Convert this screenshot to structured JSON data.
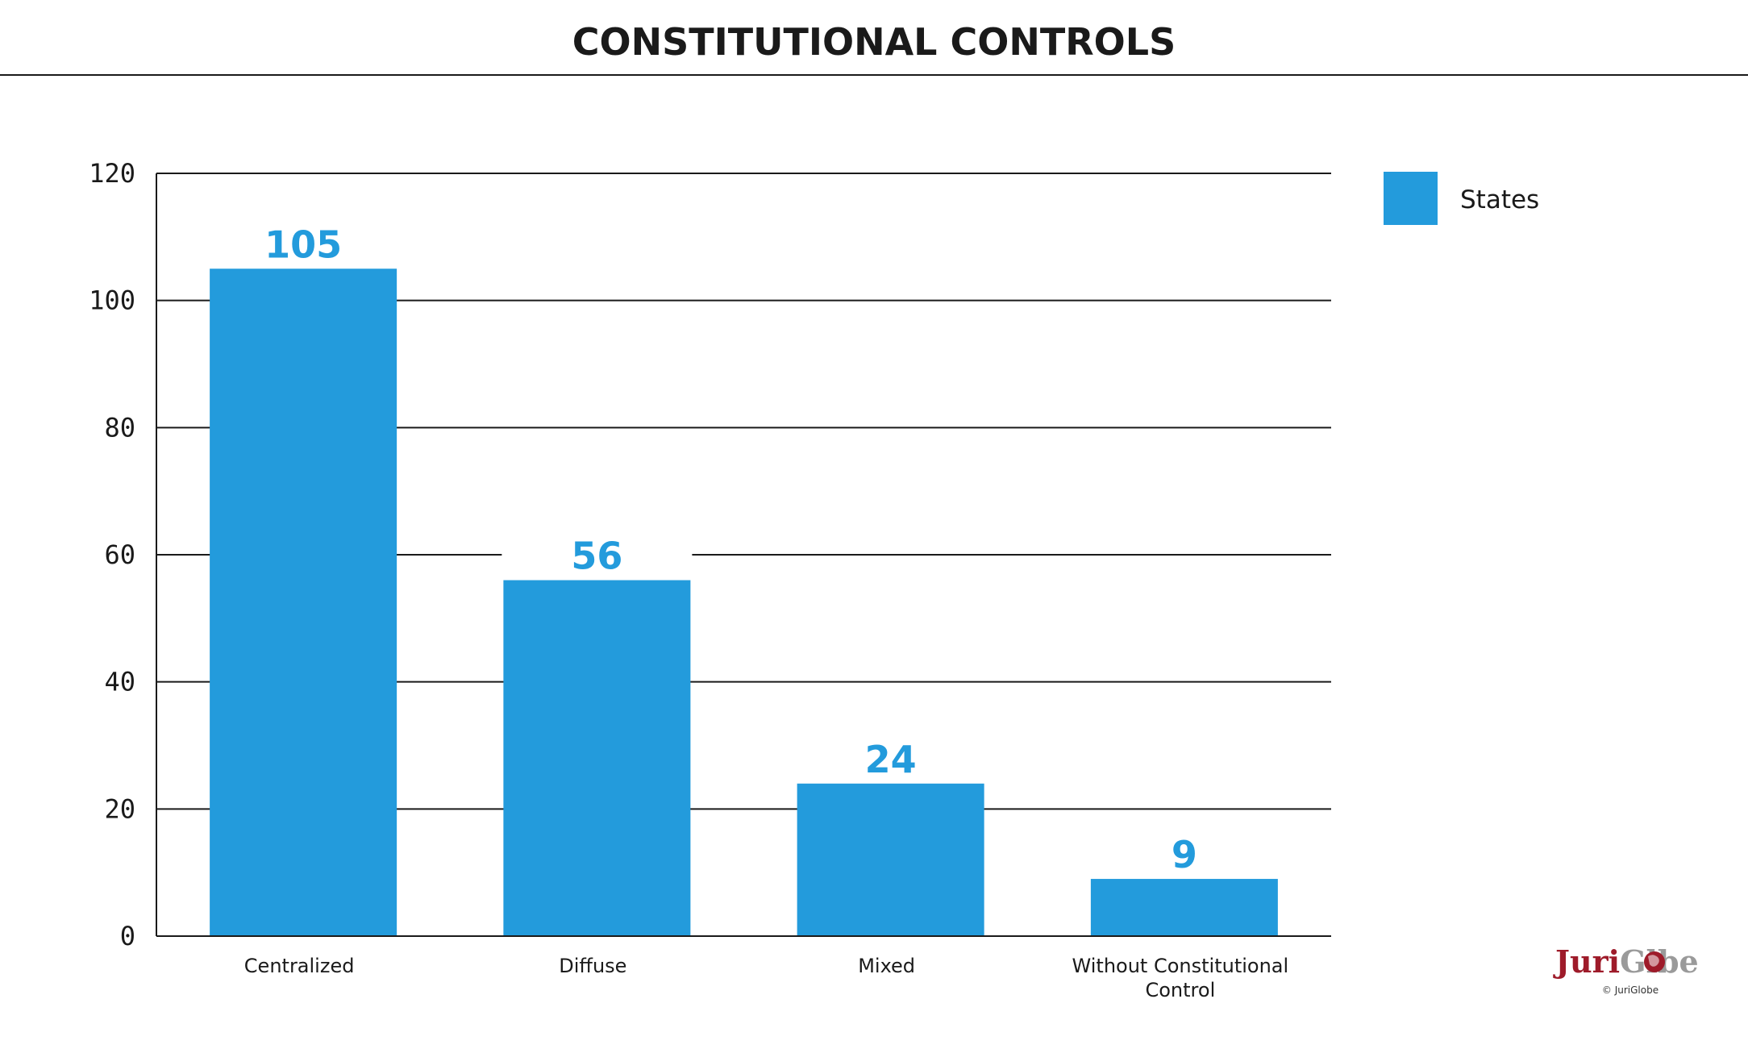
{
  "colors": {
    "bar": "#239bdc",
    "label": "#239bdc",
    "axis": "#1a1a1a",
    "logo_red": "#9e1b2a",
    "logo_gray": "#9a9a9a"
  },
  "chart_data": {
    "type": "bar",
    "title": "CONSTITUTIONAL CONTROLS",
    "categories": [
      "Centralized",
      "Diffuse",
      "Mixed",
      "Without Constitutional Control"
    ],
    "category_lines": [
      [
        "Centralized"
      ],
      [
        "Diffuse"
      ],
      [
        "Mixed"
      ],
      [
        "Without Constitutional",
        "Control"
      ]
    ],
    "series": [
      {
        "name": "States",
        "values": [
          105,
          56,
          24,
          9
        ]
      }
    ],
    "xlabel": "",
    "ylabel": "",
    "ylim": [
      0,
      120
    ],
    "yticks": [
      0,
      20,
      40,
      60,
      80,
      100,
      120
    ],
    "grid": true,
    "legend": "right"
  },
  "logo": {
    "part1": "Juri",
    "part2": "Glbe",
    "copyright": "© JuriGlobe"
  },
  "icons": {
    "logo_globe": "globe-icon"
  }
}
